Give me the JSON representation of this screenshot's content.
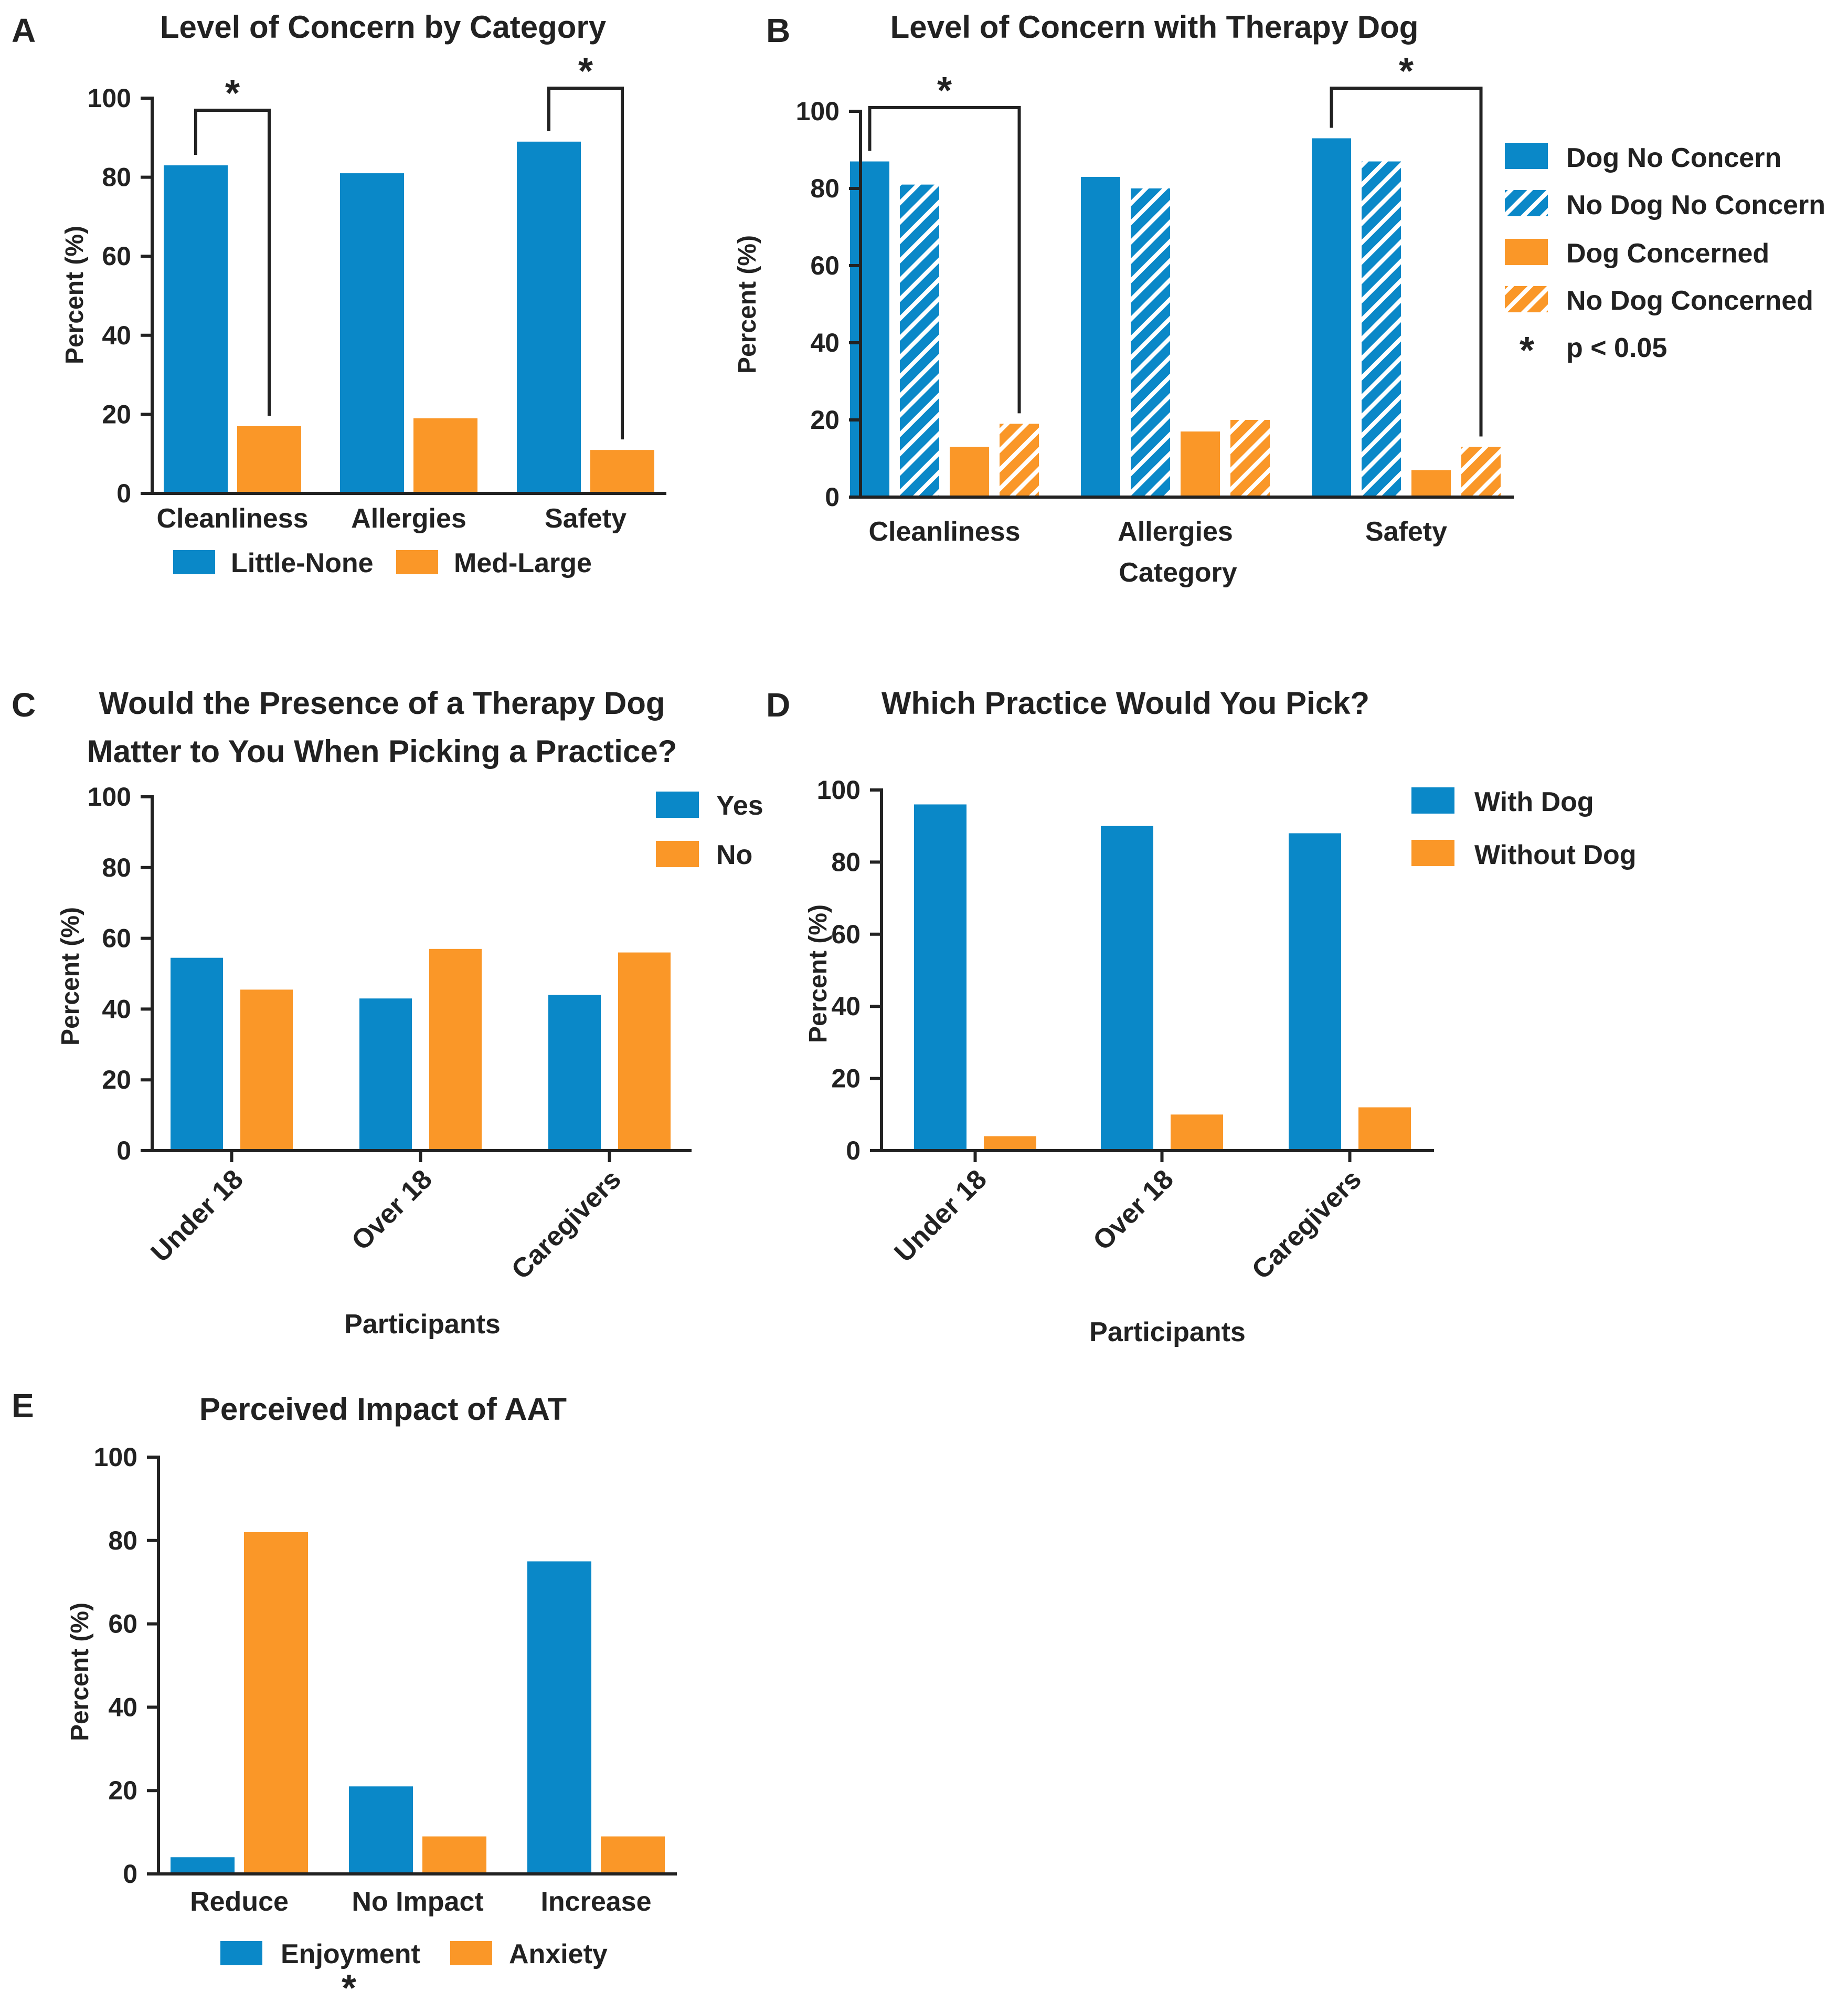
{
  "colors": {
    "blue": "#0A88C8",
    "orange": "#FA9728",
    "axis": "#222222",
    "background": "#FFFFFF"
  },
  "chart_data": [
    {
      "panel": "A",
      "type": "bar",
      "title": "Level of Concern by Category",
      "xlabel": "",
      "ylabel": "Percent (%)",
      "ylim": [
        0,
        100
      ],
      "yticks": [
        0,
        20,
        40,
        60,
        80,
        100
      ],
      "categories": [
        "Cleanliness",
        "Allergies",
        "Safety"
      ],
      "series": [
        {
          "name": "Little-None",
          "color": "blue",
          "pattern": "solid",
          "values": [
            83,
            81,
            89
          ]
        },
        {
          "name": "Med-Large",
          "color": "orange",
          "pattern": "solid",
          "values": [
            17,
            19,
            11
          ]
        }
      ],
      "legend_position": "bottom",
      "annotations": [
        {
          "text": "*",
          "category_index": 0,
          "from_series": 0,
          "to_series": 1
        },
        {
          "text": "*",
          "category_index": 2,
          "from_series": 0,
          "to_series": 1
        }
      ]
    },
    {
      "panel": "B",
      "type": "bar",
      "title": "Level of Concern with Therapy Dog",
      "xlabel": "Category",
      "ylabel": "Percent (%)",
      "ylim": [
        0,
        100
      ],
      "yticks": [
        0,
        20,
        40,
        60,
        80,
        100
      ],
      "categories": [
        "Cleanliness",
        "Allergies",
        "Safety"
      ],
      "series": [
        {
          "name": "Dog No Concern",
          "color": "blue",
          "pattern": "solid",
          "values": [
            87,
            83,
            93
          ]
        },
        {
          "name": "No Dog No Concern",
          "color": "blue",
          "pattern": "hatched",
          "values": [
            81,
            80,
            87
          ]
        },
        {
          "name": "Dog Concerned",
          "color": "orange",
          "pattern": "solid",
          "values": [
            13,
            17,
            7
          ]
        },
        {
          "name": "No Dog Concerned",
          "color": "orange",
          "pattern": "hatched",
          "values": [
            19,
            20,
            13
          ]
        }
      ],
      "legend_position": "right",
      "legend_note": {
        "symbol": "*",
        "text": "p < 0.05"
      },
      "annotations": [
        {
          "text": "*",
          "category_index": 0,
          "from_series": 0,
          "to_series": 3
        },
        {
          "text": "*",
          "category_index": 2,
          "from_series": 0,
          "to_series": 3
        }
      ]
    },
    {
      "panel": "C",
      "type": "bar",
      "title": "Would the Presence of a Therapy Dog",
      "title_line2": "Matter to You When Picking a Practice?",
      "xlabel": "Participants",
      "ylabel": "Percent (%)",
      "ylim": [
        0,
        100
      ],
      "yticks": [
        0,
        20,
        40,
        60,
        80,
        100
      ],
      "categories": [
        "Under 18",
        "Over 18",
        "Caregivers"
      ],
      "series": [
        {
          "name": "Yes",
          "color": "blue",
          "pattern": "solid",
          "values": [
            54.5,
            43,
            44
          ]
        },
        {
          "name": "No",
          "color": "orange",
          "pattern": "solid",
          "values": [
            45.5,
            57,
            56
          ]
        }
      ],
      "legend_position": "top-right",
      "annotations": []
    },
    {
      "panel": "D",
      "type": "bar",
      "title": "Which Practice Would You Pick?",
      "xlabel": "Participants",
      "ylabel": "Percent (%)",
      "ylim": [
        0,
        100
      ],
      "yticks": [
        0,
        20,
        40,
        60,
        80,
        100
      ],
      "categories": [
        "Under 18",
        "Over 18",
        "Caregivers"
      ],
      "series": [
        {
          "name": "With Dog",
          "color": "blue",
          "pattern": "solid",
          "values": [
            96,
            90,
            88
          ]
        },
        {
          "name": "Without Dog",
          "color": "orange",
          "pattern": "solid",
          "values": [
            4,
            10,
            12
          ]
        }
      ],
      "legend_position": "top-right",
      "annotations": []
    },
    {
      "panel": "E",
      "type": "bar",
      "title": "Perceived Impact of AAT",
      "xlabel": "",
      "ylabel": "Percent (%)",
      "ylim": [
        0,
        100
      ],
      "yticks": [
        0,
        20,
        40,
        60,
        80,
        100
      ],
      "categories": [
        "Reduce",
        "No Impact",
        "Increase"
      ],
      "series": [
        {
          "name": "Enjoyment",
          "color": "blue",
          "pattern": "solid",
          "values": [
            4,
            21,
            75
          ]
        },
        {
          "name": "Anxiety",
          "color": "orange",
          "pattern": "solid",
          "values": [
            82,
            9,
            9
          ]
        }
      ],
      "legend_position": "bottom",
      "legend_mark": "*",
      "annotations": []
    }
  ]
}
